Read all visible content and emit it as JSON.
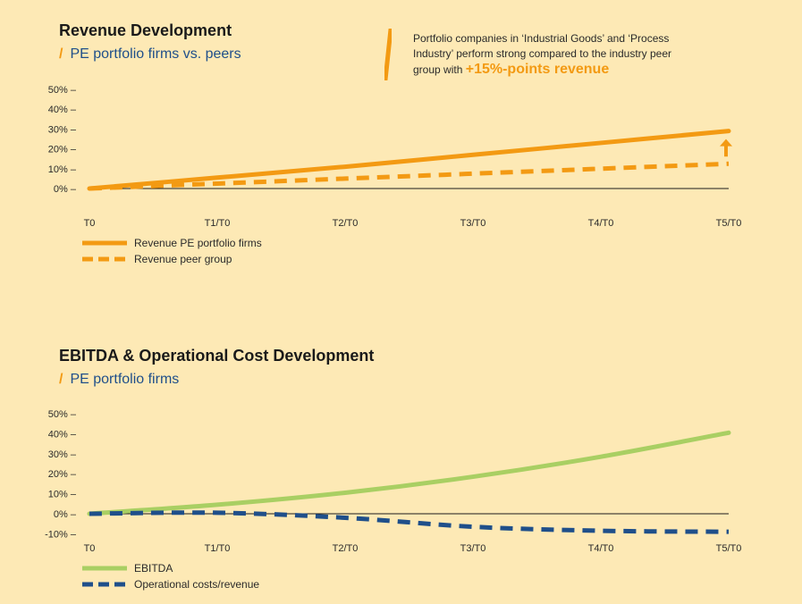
{
  "charts": [
    {
      "title": "Revenue Development",
      "subtitle": "PE portfolio firms vs. peers",
      "callout": {
        "text": "Portfolio companies in ‘Industrial Goods’ and ‘Process Industry’ perform strong compared to the industry peer group with",
        "highlight": "+15%-points revenue"
      }
    },
    {
      "title": "EBITDA & Operational Cost Development",
      "subtitle": "PE portfolio firms"
    }
  ],
  "colors": {
    "orange": "#f39a13",
    "green": "#a9cf63",
    "navy": "#1f4f8a",
    "background": "#fde9b5"
  },
  "chart_data": [
    {
      "type": "line",
      "title": "Revenue Development",
      "subtitle": "PE portfolio firms vs. peers",
      "categories": [
        "T0",
        "T1/T0",
        "T2/T0",
        "T3/T0",
        "T4/T0",
        "T5/T0"
      ],
      "ytick_labels": [
        "50% –",
        "40% –",
        "30% –",
        "20% –",
        "10% –",
        "0% –"
      ],
      "yticks": [
        50,
        40,
        30,
        20,
        10,
        0
      ],
      "ylim": [
        0,
        50
      ],
      "series": [
        {
          "name": "Revenue PE portfolio firms",
          "values": [
            0,
            5.5,
            11,
            17,
            23,
            29
          ],
          "color": "#f39a13",
          "style": "solid"
        },
        {
          "name": "Revenue peer group",
          "values": [
            0,
            2.5,
            5,
            7.5,
            10,
            12.5
          ],
          "color": "#f39a13",
          "style": "dashed"
        }
      ],
      "annotation": "up-arrow at T5/T0 between series",
      "grid": false,
      "legend": "bottom-left"
    },
    {
      "type": "line",
      "title": "EBITDA & Operational Cost Development",
      "subtitle": "PE portfolio firms",
      "categories": [
        "T0",
        "T1/T0",
        "T2/T0",
        "T3/T0",
        "T4/T0",
        "T5/T0"
      ],
      "ytick_labels": [
        "50% –",
        "40% –",
        "30% –",
        "20% –",
        "10% –",
        "0% –",
        "-10% –"
      ],
      "yticks": [
        50,
        40,
        30,
        20,
        10,
        0,
        -10
      ],
      "ylim": [
        -10,
        50
      ],
      "series": [
        {
          "name": "EBITDA",
          "values": [
            0,
            4.5,
            10.5,
            18.5,
            28.5,
            40.5
          ],
          "color": "#a9cf63",
          "style": "solid"
        },
        {
          "name": "Operational costs/revenue",
          "values": [
            0,
            0.5,
            -2,
            -6.5,
            -8.5,
            -9
          ],
          "color": "#1f4f8a",
          "style": "dashed"
        }
      ],
      "grid": false,
      "legend": "bottom-left"
    }
  ]
}
